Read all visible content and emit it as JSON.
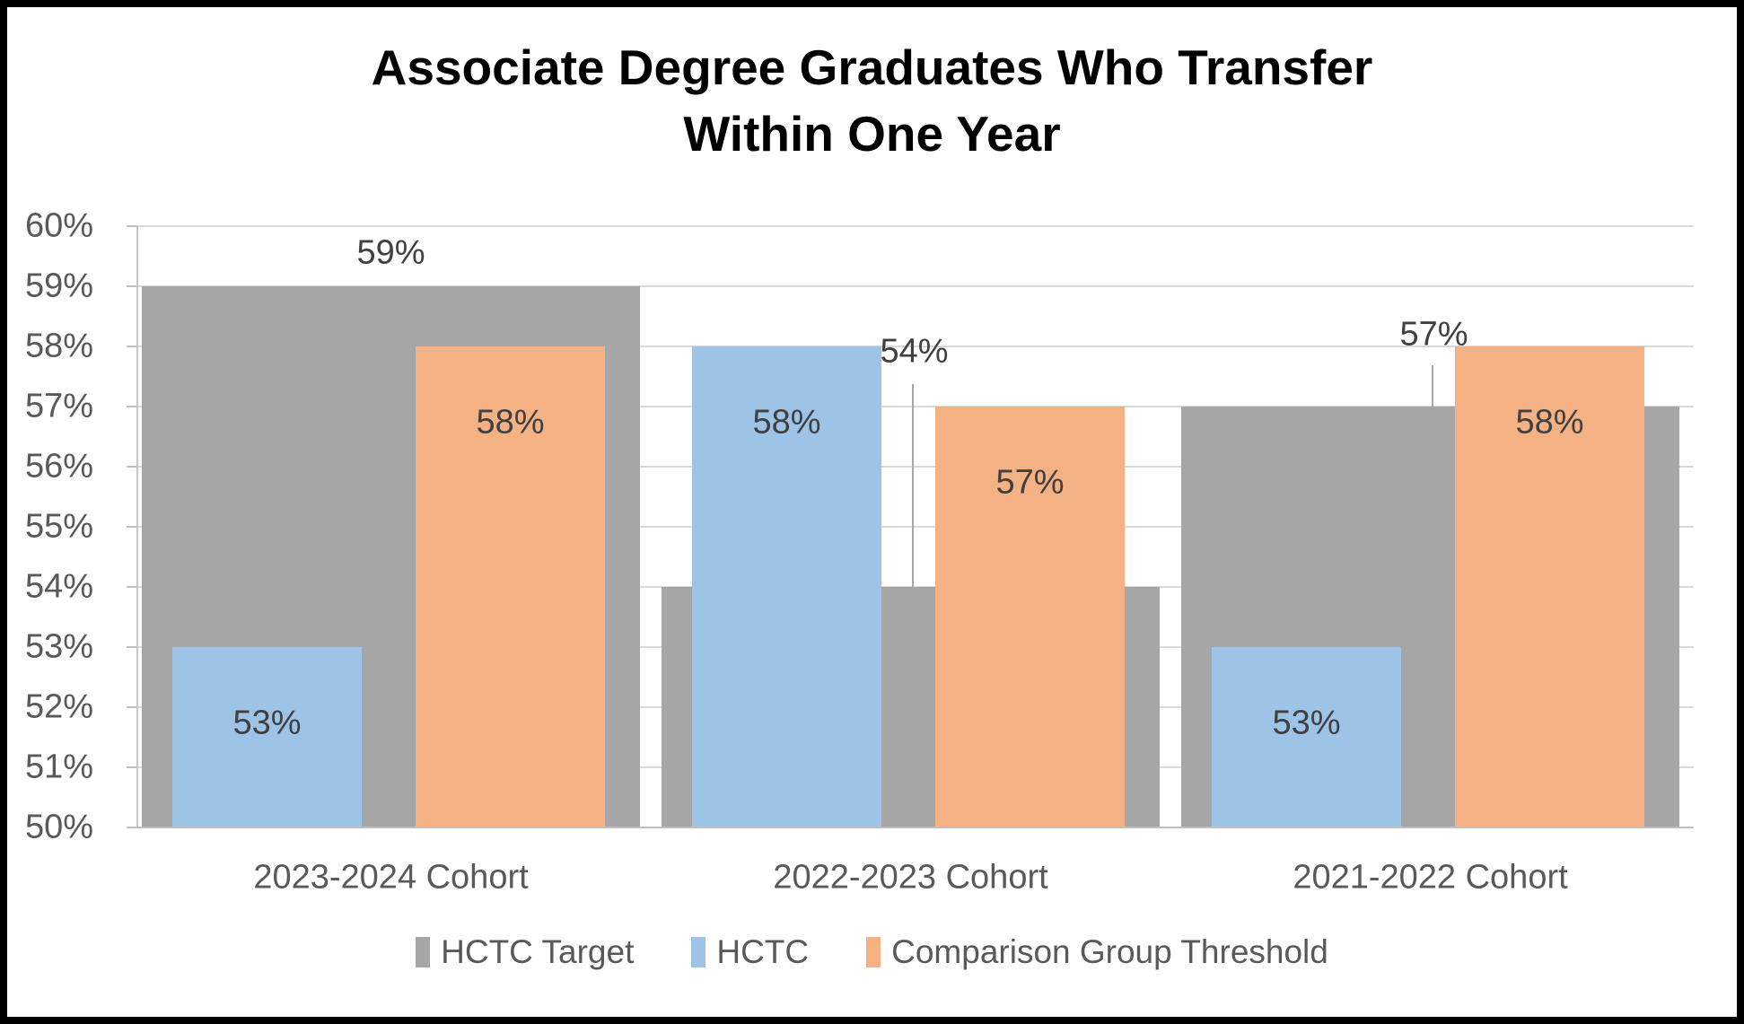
{
  "title": {
    "line1": "Associate Degree Graduates Who Transfer",
    "line2": "Within One Year"
  },
  "y_axis": {
    "tick_labels": [
      "60%",
      "59%",
      "58%",
      "57%",
      "56%",
      "55%",
      "54%",
      "53%",
      "52%",
      "51%",
      "50%"
    ],
    "min": 50,
    "max": 60,
    "step": 1
  },
  "x_axis": {
    "categories": [
      "2023-2024 Cohort",
      "2022-2023 Cohort",
      "2021-2022 Cohort"
    ]
  },
  "legend": {
    "items": [
      {
        "label": "HCTC Target",
        "color": "#a6a6a6"
      },
      {
        "label": "HCTC",
        "color": "#9dc3e6"
      },
      {
        "label": "Comparison Group Threshold",
        "color": "#f4b183"
      }
    ]
  },
  "chart_data": {
    "type": "bar",
    "title": "Associate Degree Graduates Who Transfer Within One Year",
    "categories": [
      "2023-2024 Cohort",
      "2022-2023 Cohort",
      "2021-2022 Cohort"
    ],
    "series": [
      {
        "name": "HCTC Target",
        "color": "#a6a6a6",
        "values": [
          59,
          54,
          57
        ],
        "labels": [
          "59%",
          "54%",
          "57%"
        ],
        "style": "wide-background-bar"
      },
      {
        "name": "HCTC",
        "color": "#9dc3e6",
        "values": [
          53,
          58,
          53
        ],
        "labels": [
          "53%",
          "58%",
          "53%"
        ],
        "style": "overlay-bar"
      },
      {
        "name": "Comparison Group Threshold",
        "color": "#f4b183",
        "values": [
          58,
          57,
          58
        ],
        "labels": [
          "58%",
          "57%",
          "58%"
        ],
        "style": "overlay-bar"
      }
    ],
    "ylim": [
      50,
      60
    ],
    "ylabel": "",
    "xlabel": "",
    "y_tick_format": "percent",
    "grid": true,
    "legend_position": "bottom",
    "data_label_color": "#404040",
    "gridline_color": "#d9d9d9",
    "axis_color": "#bfbfbf"
  }
}
